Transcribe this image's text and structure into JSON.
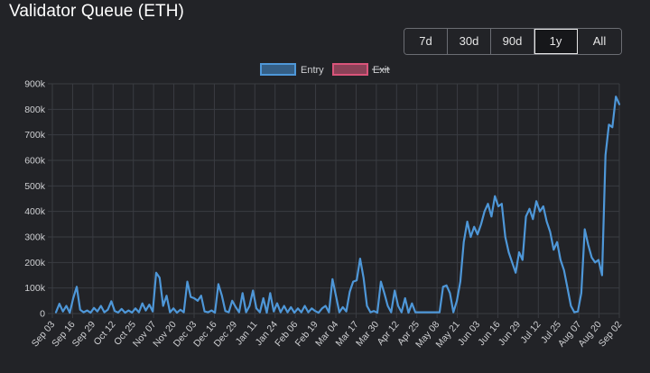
{
  "header": {
    "title": "Validator Queue (ETH)"
  },
  "range_buttons": [
    {
      "label": "7d"
    },
    {
      "label": "30d"
    },
    {
      "label": "90d"
    },
    {
      "label": "1y",
      "active": true
    },
    {
      "label": "All"
    }
  ],
  "colors": {
    "entry": "#4e97d8",
    "exit": "#d9547a",
    "grid": "#3a3c42",
    "text": "#cfd0d3"
  },
  "chart_data": {
    "type": "line",
    "title": "",
    "xlabel": "",
    "ylabel": "",
    "ylim": [
      0,
      900000
    ],
    "y_ticks": [
      "0",
      "100k",
      "200k",
      "300k",
      "400k",
      "500k",
      "600k",
      "700k",
      "800k",
      "900k"
    ],
    "x_tick_labels": [
      "Sep 03",
      "Sep 16",
      "Sep 29",
      "Oct 12",
      "Oct 25",
      "Nov 07",
      "Nov 20",
      "Dec 03",
      "Dec 16",
      "Dec 29",
      "Jan 11",
      "Jan 24",
      "Feb 06",
      "Feb 19",
      "Mar 04",
      "Mar 17",
      "Mar 30",
      "Apr 12",
      "Apr 25",
      "May 08",
      "May 21",
      "Jun 03",
      "Jun 16",
      "Jun 29",
      "Jul 12",
      "Jul 25",
      "Aug 07",
      "Aug 20",
      "Sep 02"
    ],
    "legend": [
      "Entry",
      "Exit"
    ],
    "legend_position": "top",
    "series": [
      {
        "name": "Entry",
        "color": "#4e97d8",
        "hidden": false,
        "values": [
          5000,
          38000,
          8000,
          30000,
          3000,
          60000,
          105000,
          15000,
          5000,
          12000,
          3000,
          22000,
          8000,
          30000,
          5000,
          15000,
          48000,
          10000,
          4000,
          18000,
          3000,
          12000,
          4000,
          20000,
          5000,
          40000,
          12000,
          35000,
          8000,
          160000,
          140000,
          30000,
          70000,
          5000,
          20000,
          3000,
          15000,
          5000,
          125000,
          65000,
          60000,
          50000,
          70000,
          8000,
          5000,
          12000,
          3000,
          115000,
          70000,
          10000,
          5000,
          50000,
          25000,
          5000,
          80000,
          5000,
          30000,
          90000,
          20000,
          5000,
          60000,
          3000,
          80000,
          8000,
          40000,
          5000,
          30000,
          5000,
          25000,
          3000,
          20000,
          5000,
          30000,
          5000,
          20000,
          10000,
          3000,
          20000,
          30000,
          5000,
          135000,
          70000,
          5000,
          25000,
          8000,
          85000,
          125000,
          130000,
          215000,
          140000,
          30000,
          5000,
          10000,
          3000,
          125000,
          80000,
          30000,
          5000,
          90000,
          30000,
          5000,
          60000,
          3000,
          40000,
          5000,
          5000,
          5000,
          5000,
          5000,
          5000,
          5000,
          5000,
          105000,
          110000,
          80000,
          5000,
          50000,
          125000,
          280000,
          360000,
          300000,
          340000,
          310000,
          350000,
          400000,
          430000,
          380000,
          460000,
          420000,
          430000,
          300000,
          240000,
          200000,
          160000,
          240000,
          210000,
          380000,
          410000,
          370000,
          440000,
          400000,
          420000,
          360000,
          320000,
          250000,
          280000,
          210000,
          170000,
          100000,
          30000,
          5000,
          8000,
          80000,
          330000,
          270000,
          220000,
          200000,
          210000,
          150000,
          620000,
          740000,
          730000,
          850000,
          820000
        ]
      },
      {
        "name": "Exit",
        "color": "#d9547a",
        "hidden": true,
        "values": []
      }
    ]
  }
}
